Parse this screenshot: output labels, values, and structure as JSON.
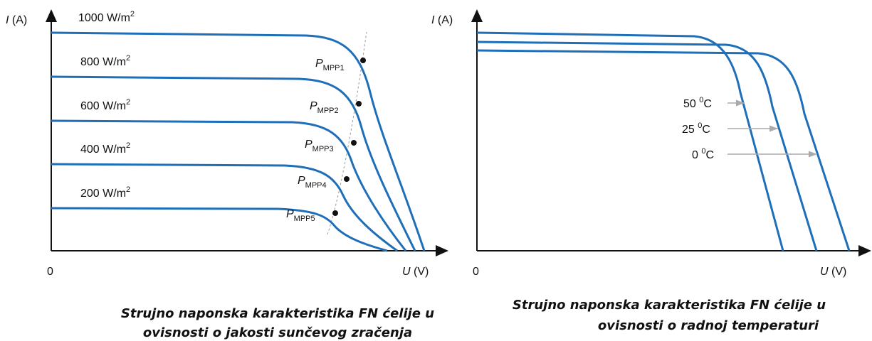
{
  "left": {
    "y_axis": {
      "symbol": "I",
      "unit": "(A)"
    },
    "x_axis": {
      "symbol": "U",
      "unit": "(V)"
    },
    "origin": "0",
    "curves": [
      {
        "value": "1000 W/m",
        "sup": "2"
      },
      {
        "value": "800 W/m",
        "sup": "2"
      },
      {
        "value": "600 W/m",
        "sup": "2"
      },
      {
        "value": "400 W/m",
        "sup": "2"
      },
      {
        "value": "200 W/m",
        "sup": "2"
      }
    ],
    "points": [
      {
        "symbol": "P",
        "sub": "MPP1"
      },
      {
        "symbol": "P",
        "sub": "MPP2"
      },
      {
        "symbol": "P",
        "sub": "MPP3"
      },
      {
        "symbol": "P",
        "sub": "MPP4"
      },
      {
        "symbol": "P",
        "sub": "MPP5"
      }
    ],
    "caption": [
      "Strujno naponska karakteristika FN ćelije  u",
      "ovisnosti o jakosti sunčevog zračenja"
    ]
  },
  "right": {
    "y_axis": {
      "symbol": "I",
      "unit": "(A)"
    },
    "x_axis": {
      "symbol": "U",
      "unit": "(V)"
    },
    "origin": "0",
    "curves": [
      {
        "value": "50 ",
        "sup": "0",
        "unit": "C"
      },
      {
        "value": "25 ",
        "sup": "0",
        "unit": "C"
      },
      {
        "value": "0 ",
        "sup": "0",
        "unit": "C"
      }
    ],
    "caption": [
      "Strujno naponska karakteristika FN ćelije u",
      "ovisnosti o radnoj temperaturi"
    ]
  }
}
